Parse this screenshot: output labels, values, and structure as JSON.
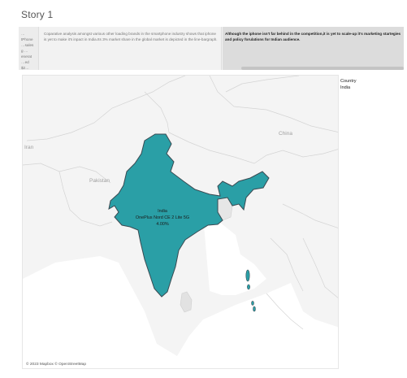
{
  "story": {
    "title": "Story 1"
  },
  "navigator": {
    "points": [
      {
        "text": "…tPhone …sales g …enerat …ed $2…"
      },
      {
        "text": "Coparative analysis amongst various other loading brands in the smartphone industry shows that iphone is yet to make it's inpact in India.Its 3% market share in the global market is depicted in the line-bargraph."
      },
      {
        "text": "Although the iphone isn't far behind in the competition,it is yet to scale-up it's marketing startegies and policy forulations for Indian audience."
      }
    ]
  },
  "map": {
    "labels": {
      "iran": "Iran",
      "pakistan": "Pakistan",
      "china": "China"
    },
    "highlight": {
      "country": "India",
      "product": "OnePlus Nord CE 2 Lite 5G",
      "value": "4.00%"
    },
    "attribution": "© 2023 Mapbox © OpenStreetMap",
    "fill_color": "#2a9fa6",
    "border_color": "#3a4a52"
  },
  "legend": {
    "title": "Country",
    "item": "India"
  }
}
